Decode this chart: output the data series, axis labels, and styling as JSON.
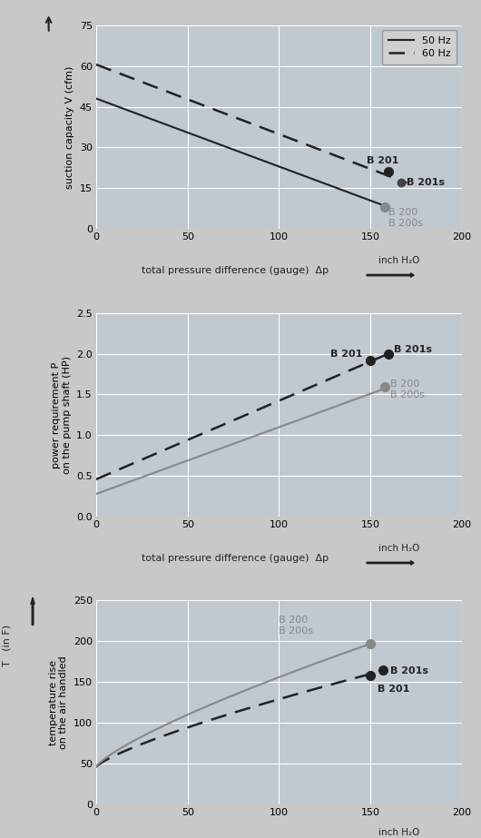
{
  "bg_color": "#c8c8c8",
  "plot_bg_color": "#c0c8d0",
  "grid_color": "#ffffff",
  "dark_line_color": "#222222",
  "gray_line_color": "#888888",
  "chart1": {
    "ylabel": "suction capacity V (cfm)",
    "ylim": [
      0,
      75
    ],
    "yticks": [
      0,
      15,
      30,
      45,
      60,
      75
    ],
    "xlim": [
      0,
      200
    ],
    "xticks": [
      0,
      50,
      100,
      150,
      200
    ],
    "line50_x": [
      0,
      160
    ],
    "line50_y": [
      48,
      8
    ],
    "line60_x": [
      0,
      170
    ],
    "line60_y": [
      60.5,
      17
    ],
    "point_B201_x": 160,
    "point_B201_y": 21,
    "point_B201s_x": 167,
    "point_B201s_y": 17,
    "point_B200_x": 158,
    "point_B200_y": 8,
    "legend_50hz": "50 Hz",
    "legend_60hz": "60 Hz"
  },
  "chart2": {
    "ylabel": "power requirement P\non the pump shaft (HP)",
    "ylim": [
      0.0,
      2.5
    ],
    "yticks": [
      0.0,
      0.5,
      1.0,
      1.5,
      2.0,
      2.5
    ],
    "xlim": [
      0,
      200
    ],
    "xticks": [
      0,
      50,
      100,
      150,
      200
    ],
    "line50_x": [
      0,
      160
    ],
    "line50_y": [
      0.28,
      1.59
    ],
    "line60_x": [
      0,
      160
    ],
    "line60_y": [
      0.46,
      2.0
    ],
    "point_B201_x": 150,
    "point_B201_y": 1.92,
    "point_B201s_x": 160,
    "point_B201s_y": 2.0,
    "point_B200_x": 158,
    "point_B200_y": 1.59
  },
  "chart3": {
    "ylabel": "temperature rise\non the air handled",
    "ylim": [
      0,
      250
    ],
    "yticks": [
      0,
      50,
      100,
      150,
      200,
      250
    ],
    "xlim": [
      0,
      200
    ],
    "xticks": [
      0,
      50,
      100,
      150,
      200
    ],
    "curve50_power": 0.78,
    "curve50_start": 46,
    "curve50_end": 160,
    "curve60_power": 0.78,
    "curve60_start": 46,
    "curve60_end": 197,
    "curve_xmax": 150,
    "point_B201_x": 150,
    "point_B201_y": 158,
    "point_B201s_x": 157,
    "point_B201s_y": 165,
    "point_B200_x": 150,
    "point_B200_y": 197
  },
  "xlabel": "total pressure difference (gauge)  Δp",
  "xlabel_unit": "inch H₂O"
}
